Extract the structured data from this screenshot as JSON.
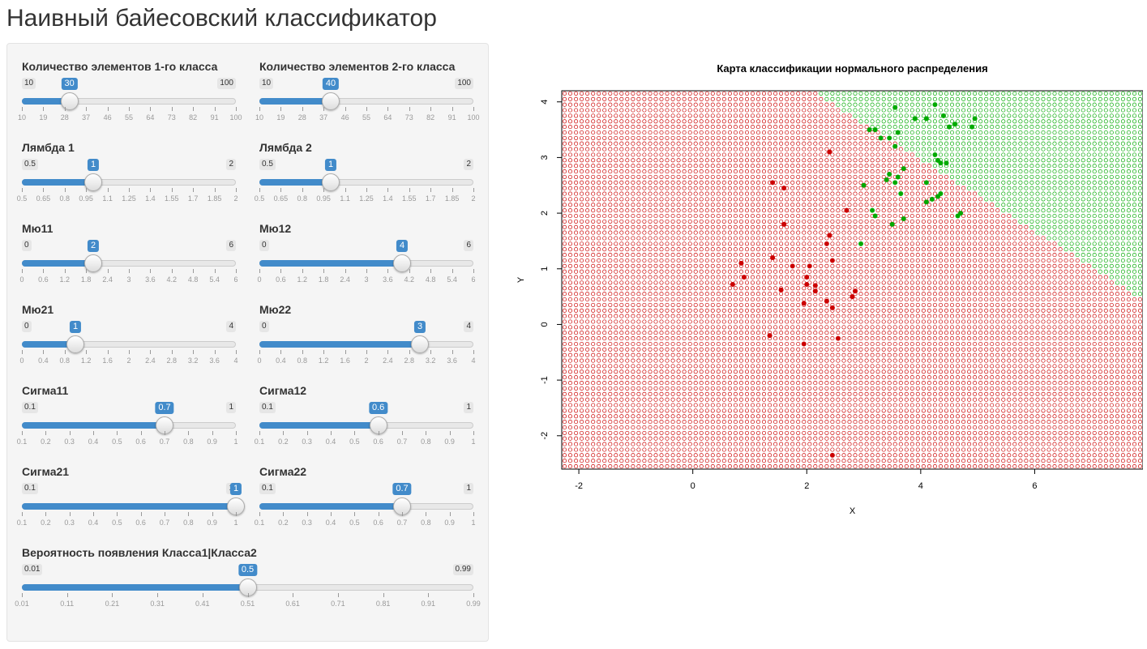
{
  "app": {
    "title": "Наивный байесовский классификатор"
  },
  "sliders": [
    {
      "id": "n1",
      "label": "Количество элементов 1-го класса",
      "min": 10,
      "max": 100,
      "value": 30,
      "min_label": "10",
      "max_label": "100",
      "value_label": "30",
      "ticks": [
        "10",
        "19",
        "28",
        "37",
        "46",
        "55",
        "64",
        "73",
        "82",
        "91",
        "100"
      ]
    },
    {
      "id": "n2",
      "label": "Количество элементов 2-го класса",
      "min": 10,
      "max": 100,
      "value": 40,
      "min_label": "10",
      "max_label": "100",
      "value_label": "40",
      "ticks": [
        "10",
        "19",
        "28",
        "37",
        "46",
        "55",
        "64",
        "73",
        "82",
        "91",
        "100"
      ]
    },
    {
      "id": "l1",
      "label": "Лямбда 1",
      "min": 0.5,
      "max": 2,
      "value": 1,
      "min_label": "0.5",
      "max_label": "2",
      "value_label": "1",
      "ticks": [
        "0.5",
        "0.65",
        "0.8",
        "0.95",
        "1.1",
        "1.25",
        "1.4",
        "1.55",
        "1.7",
        "1.85",
        "2"
      ]
    },
    {
      "id": "l2",
      "label": "Лямбда 2",
      "min": 0.5,
      "max": 2,
      "value": 1,
      "min_label": "0.5",
      "max_label": "2",
      "value_label": "1",
      "ticks": [
        "0.5",
        "0.65",
        "0.8",
        "0.95",
        "1.1",
        "1.25",
        "1.4",
        "1.55",
        "1.7",
        "1.85",
        "2"
      ]
    },
    {
      "id": "m11",
      "label": "Мю11",
      "min": 0,
      "max": 6,
      "value": 2,
      "min_label": "0",
      "max_label": "6",
      "value_label": "2",
      "ticks": [
        "0",
        "0.6",
        "1.2",
        "1.8",
        "2.4",
        "3",
        "3.6",
        "4.2",
        "4.8",
        "5.4",
        "6"
      ]
    },
    {
      "id": "m12",
      "label": "Мю12",
      "min": 0,
      "max": 6,
      "value": 4,
      "min_label": "0",
      "max_label": "6",
      "value_label": "4",
      "ticks": [
        "0",
        "0.6",
        "1.2",
        "1.8",
        "2.4",
        "3",
        "3.6",
        "4.2",
        "4.8",
        "5.4",
        "6"
      ]
    },
    {
      "id": "m21",
      "label": "Мю21",
      "min": 0,
      "max": 4,
      "value": 1,
      "min_label": "0",
      "max_label": "4",
      "value_label": "1",
      "ticks": [
        "0",
        "0.4",
        "0.8",
        "1.2",
        "1.6",
        "2",
        "2.4",
        "2.8",
        "3.2",
        "3.6",
        "4"
      ]
    },
    {
      "id": "m22",
      "label": "Мю22",
      "min": 0,
      "max": 4,
      "value": 3,
      "min_label": "0",
      "max_label": "4",
      "value_label": "3",
      "ticks": [
        "0",
        "0.4",
        "0.8",
        "1.2",
        "1.6",
        "2",
        "2.4",
        "2.8",
        "3.2",
        "3.6",
        "4"
      ]
    },
    {
      "id": "s11",
      "label": "Сигма11",
      "min": 0.1,
      "max": 1,
      "value": 0.7,
      "min_label": "0.1",
      "max_label": "1",
      "value_label": "0.7",
      "ticks": [
        "0.1",
        "0.2",
        "0.3",
        "0.4",
        "0.5",
        "0.6",
        "0.7",
        "0.8",
        "0.9",
        "1"
      ]
    },
    {
      "id": "s12",
      "label": "Сигма12",
      "min": 0.1,
      "max": 1,
      "value": 0.6,
      "min_label": "0.1",
      "max_label": "1",
      "value_label": "0.6",
      "ticks": [
        "0.1",
        "0.2",
        "0.3",
        "0.4",
        "0.5",
        "0.6",
        "0.7",
        "0.8",
        "0.9",
        "1"
      ]
    },
    {
      "id": "s21",
      "label": "Сигма21",
      "min": 0.1,
      "max": 1,
      "value": 1,
      "min_label": "0.1",
      "max_label": "1",
      "value_label": "1",
      "ticks": [
        "0.1",
        "0.2",
        "0.3",
        "0.4",
        "0.5",
        "0.6",
        "0.7",
        "0.8",
        "0.9",
        "1"
      ]
    },
    {
      "id": "s22",
      "label": "Сигма22",
      "min": 0.1,
      "max": 1,
      "value": 0.7,
      "min_label": "0.1",
      "max_label": "1",
      "value_label": "0.7",
      "ticks": [
        "0.1",
        "0.2",
        "0.3",
        "0.4",
        "0.5",
        "0.6",
        "0.7",
        "0.8",
        "0.9",
        "1"
      ]
    },
    {
      "id": "p",
      "label": "Вероятность появления Класса1|Класса2",
      "min": 0.01,
      "max": 0.99,
      "value": 0.5,
      "min_label": "0.01",
      "max_label": "0.99",
      "value_label": "0.5",
      "ticks": [
        "0.01",
        "0.11",
        "0.21",
        "0.31",
        "0.41",
        "0.51",
        "0.61",
        "0.71",
        "0.81",
        "0.91",
        "0.99"
      ]
    }
  ],
  "chart_data": {
    "type": "scatter",
    "title": "Карта классификации нормального распределения",
    "xlabel": "X",
    "ylabel": "Y",
    "xlim": [
      -2.3,
      7.9
    ],
    "ylim": [
      -2.6,
      4.2
    ],
    "xticks": [
      "-2",
      "0",
      "2",
      "4",
      "6"
    ],
    "yticks": [
      "-2",
      "-1",
      "0",
      "1",
      "2",
      "3",
      "4"
    ],
    "grid": false,
    "colors": {
      "class1": "#cc0000",
      "class2": "#00aa00"
    },
    "class1_points": [
      [
        2.4,
        3.1
      ],
      [
        1.4,
        2.55
      ],
      [
        1.6,
        2.45
      ],
      [
        2.7,
        2.05
      ],
      [
        1.6,
        1.8
      ],
      [
        2.4,
        1.6
      ],
      [
        2.35,
        1.45
      ],
      [
        1.4,
        1.2
      ],
      [
        2.45,
        1.15
      ],
      [
        0.85,
        1.1
      ],
      [
        1.75,
        1.05
      ],
      [
        2.05,
        1.05
      ],
      [
        0.9,
        0.85
      ],
      [
        2.0,
        0.85
      ],
      [
        0.7,
        0.72
      ],
      [
        2.0,
        0.72
      ],
      [
        2.15,
        0.7
      ],
      [
        1.55,
        0.62
      ],
      [
        2.15,
        0.6
      ],
      [
        2.85,
        0.6
      ],
      [
        2.8,
        0.5
      ],
      [
        2.35,
        0.42
      ],
      [
        1.95,
        0.38
      ],
      [
        2.45,
        0.3
      ],
      [
        1.35,
        -0.2
      ],
      [
        2.55,
        -0.25
      ],
      [
        1.95,
        -0.35
      ],
      [
        2.45,
        -2.35
      ]
    ],
    "class2_points": [
      [
        3.55,
        3.9
      ],
      [
        4.25,
        3.95
      ],
      [
        3.1,
        3.5
      ],
      [
        3.2,
        3.5
      ],
      [
        3.6,
        3.45
      ],
      [
        3.9,
        3.7
      ],
      [
        4.1,
        3.7
      ],
      [
        4.4,
        3.75
      ],
      [
        4.5,
        3.55
      ],
      [
        4.6,
        3.6
      ],
      [
        4.9,
        3.55
      ],
      [
        4.95,
        3.7
      ],
      [
        3.3,
        3.35
      ],
      [
        3.45,
        3.35
      ],
      [
        3.55,
        3.2
      ],
      [
        4.25,
        3.05
      ],
      [
        4.3,
        2.95
      ],
      [
        4.35,
        2.9
      ],
      [
        4.45,
        2.9
      ],
      [
        3.7,
        2.8
      ],
      [
        3.45,
        2.7
      ],
      [
        3.6,
        2.65
      ],
      [
        3.4,
        2.6
      ],
      [
        3.55,
        2.55
      ],
      [
        4.1,
        2.55
      ],
      [
        3.0,
        2.5
      ],
      [
        3.65,
        2.35
      ],
      [
        4.3,
        2.3
      ],
      [
        4.35,
        2.35
      ],
      [
        4.2,
        2.25
      ],
      [
        4.1,
        2.2
      ],
      [
        3.15,
        2.05
      ],
      [
        3.2,
        1.95
      ],
      [
        4.65,
        1.95
      ],
      [
        4.7,
        2.0
      ],
      [
        3.7,
        1.9
      ],
      [
        3.5,
        1.8
      ],
      [
        2.95,
        1.45
      ]
    ]
  }
}
